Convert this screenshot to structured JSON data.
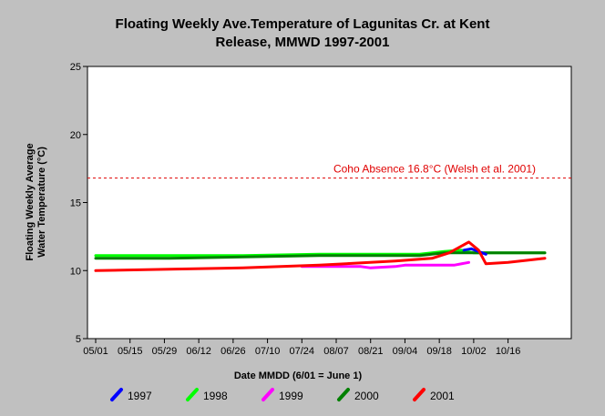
{
  "chart_data": {
    "type": "line",
    "title_lines": [
      "Floating Weekly Ave.Temperature of Lagunitas Cr. at Kent",
      "Release, MMWD 1997-2001"
    ],
    "xlabel": "Date MMDD (6/01 = June 1)",
    "ylabel_lines": [
      "Floating Weekly Average",
      "Water Temperature (°C)"
    ],
    "ylim": [
      5,
      25
    ],
    "yticks": [
      5,
      10,
      15,
      20,
      25
    ],
    "xlim": [
      "05/01",
      "10/31"
    ],
    "xtick_labels": [
      "05/01",
      "05/15",
      "05/29",
      "06/12",
      "06/26",
      "07/10",
      "07/24",
      "08/07",
      "08/21",
      "09/04",
      "09/18",
      "10/02",
      "10/16"
    ],
    "grid": false,
    "legend_position": "bottom",
    "reference_line": {
      "y": 16.8,
      "label": "Coho Absence 16.8°C (Welsh et al. 2001)",
      "color": "#e00000",
      "style": "dashed"
    },
    "series": [
      {
        "name": "1997",
        "color": "#0000ff",
        "points": [
          [
            "09/28",
            11.5
          ],
          [
            "10/01",
            11.6
          ],
          [
            "10/04",
            11.4
          ],
          [
            "10/07",
            11.2
          ]
        ]
      },
      {
        "name": "1998",
        "color": "#00ff00",
        "points": [
          [
            "05/01",
            11.1
          ],
          [
            "05/31",
            11.1
          ],
          [
            "06/30",
            11.1
          ],
          [
            "07/31",
            11.2
          ],
          [
            "08/31",
            11.2
          ],
          [
            "09/10",
            11.2
          ],
          [
            "09/20",
            11.4
          ],
          [
            "09/27",
            11.5
          ],
          [
            "10/02",
            11.3
          ],
          [
            "10/10",
            11.3
          ],
          [
            "10/20",
            11.3
          ],
          [
            "10/31",
            11.3
          ]
        ]
      },
      {
        "name": "1999",
        "color": "#ff00ff",
        "points": [
          [
            "07/24",
            10.3
          ],
          [
            "08/07",
            10.3
          ],
          [
            "08/17",
            10.3
          ],
          [
            "08/21",
            10.2
          ],
          [
            "08/31",
            10.3
          ],
          [
            "09/04",
            10.4
          ],
          [
            "09/18",
            10.4
          ],
          [
            "09/24",
            10.4
          ],
          [
            "09/30",
            10.6
          ]
        ]
      },
      {
        "name": "2000",
        "color": "#008000",
        "points": [
          [
            "05/01",
            10.9
          ],
          [
            "05/31",
            10.9
          ],
          [
            "06/30",
            11.0
          ],
          [
            "07/31",
            11.1
          ],
          [
            "08/31",
            11.1
          ],
          [
            "09/10",
            11.1
          ],
          [
            "09/20",
            11.3
          ],
          [
            "09/30",
            11.3
          ],
          [
            "10/10",
            11.3
          ],
          [
            "10/20",
            11.3
          ],
          [
            "10/31",
            11.3
          ]
        ]
      },
      {
        "name": "2001",
        "color": "#ff0000",
        "points": [
          [
            "05/01",
            10.0
          ],
          [
            "05/31",
            10.1
          ],
          [
            "06/30",
            10.2
          ],
          [
            "07/31",
            10.4
          ],
          [
            "08/31",
            10.7
          ],
          [
            "09/15",
            10.9
          ],
          [
            "09/22",
            11.3
          ],
          [
            "09/30",
            12.1
          ],
          [
            "10/04",
            11.5
          ],
          [
            "10/07",
            10.5
          ],
          [
            "10/16",
            10.6
          ],
          [
            "10/31",
            10.9
          ]
        ]
      }
    ]
  }
}
